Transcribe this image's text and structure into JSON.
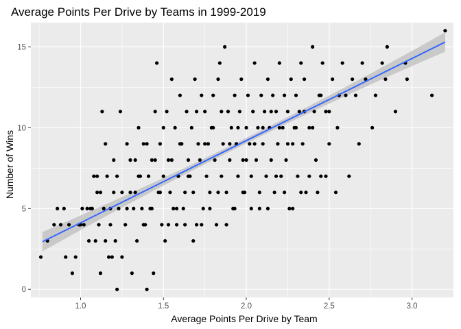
{
  "chart_data": {
    "type": "scatter",
    "title": "Average Points Per Drive by Teams in 1999-2019",
    "xlabel": "Average Points Per Drive by Team",
    "ylabel": "Number of Wins",
    "xlim": [
      0.7,
      3.25
    ],
    "ylim": [
      -0.5,
      16.5
    ],
    "x_ticks": [
      "1.0",
      "1.5",
      "2.0",
      "2.5",
      "3.0"
    ],
    "y_ticks": [
      "0",
      "5",
      "10",
      "15"
    ],
    "grid": true,
    "legend": "none",
    "colors": {
      "panel_background": "#ebebeb",
      "grid_major": "#ffffff",
      "points": "#000000",
      "trend_line": "#3366ff",
      "confidence_band": "#bdbdbd"
    },
    "trend_line": {
      "method": "lm",
      "x_range": [
        0.77,
        3.2
      ],
      "y_at_start": 2.95,
      "y_at_end": 15.3,
      "band_half_width_ends": 0.6,
      "band_half_width_center": 0.17
    },
    "series": [
      {
        "points": [
          [
            0.76,
            2
          ],
          [
            0.8,
            3
          ],
          [
            0.84,
            4
          ],
          [
            0.86,
            5
          ],
          [
            0.88,
            4
          ],
          [
            0.9,
            5
          ],
          [
            0.91,
            2
          ],
          [
            0.93,
            4
          ],
          [
            0.95,
            1
          ],
          [
            0.97,
            2
          ],
          [
            0.99,
            4
          ],
          [
            1.01,
            5
          ],
          [
            1.02,
            4
          ],
          [
            1.04,
            5
          ],
          [
            1.06,
            5
          ],
          [
            1.07,
            5
          ],
          [
            1.08,
            7
          ],
          [
            1.09,
            3
          ],
          [
            1.1,
            6
          ],
          [
            1.11,
            4
          ],
          [
            1.12,
            1
          ],
          [
            1.13,
            11
          ],
          [
            1.14,
            5
          ],
          [
            1.15,
            3
          ],
          [
            1.16,
            7
          ],
          [
            1.17,
            2
          ],
          [
            1.18,
            4
          ],
          [
            1.19,
            2
          ],
          [
            1.2,
            6
          ],
          [
            1.21,
            3
          ],
          [
            1.22,
            0
          ],
          [
            1.23,
            5
          ],
          [
            1.24,
            11
          ],
          [
            1.25,
            2
          ],
          [
            1.27,
            4
          ],
          [
            1.28,
            9
          ],
          [
            1.3,
            6
          ],
          [
            1.31,
            1
          ],
          [
            1.32,
            5
          ],
          [
            1.33,
            8
          ],
          [
            1.34,
            3
          ],
          [
            1.35,
            10
          ],
          [
            1.36,
            7
          ],
          [
            1.37,
            5
          ],
          [
            1.38,
            9
          ],
          [
            1.39,
            4
          ],
          [
            1.4,
            0
          ],
          [
            1.41,
            7
          ],
          [
            1.42,
            5
          ],
          [
            1.43,
            8
          ],
          [
            1.44,
            1
          ],
          [
            1.45,
            11
          ],
          [
            1.46,
            14
          ],
          [
            1.47,
            6
          ],
          [
            1.48,
            9
          ],
          [
            1.49,
            4
          ],
          [
            1.5,
            7
          ],
          [
            1.51,
            3
          ],
          [
            1.52,
            11
          ],
          [
            1.53,
            8
          ],
          [
            1.54,
            6
          ],
          [
            1.55,
            13
          ],
          [
            1.56,
            5
          ],
          [
            1.57,
            10
          ],
          [
            1.58,
            4
          ],
          [
            1.59,
            7
          ],
          [
            1.6,
            12
          ],
          [
            1.61,
            9
          ],
          [
            1.62,
            5
          ],
          [
            1.63,
            6
          ],
          [
            1.64,
            11
          ],
          [
            1.65,
            8
          ],
          [
            1.66,
            7
          ],
          [
            1.67,
            10
          ],
          [
            1.68,
            6
          ],
          [
            1.69,
            13
          ],
          [
            1.7,
            4
          ],
          [
            1.71,
            9
          ],
          [
            1.72,
            8
          ],
          [
            1.73,
            12
          ],
          [
            1.74,
            5
          ],
          [
            1.75,
            11
          ],
          [
            1.76,
            7
          ],
          [
            1.77,
            9
          ],
          [
            1.78,
            6
          ],
          [
            1.79,
            10
          ],
          [
            1.8,
            12
          ],
          [
            1.81,
            8
          ],
          [
            1.82,
            4
          ],
          [
            1.83,
            13
          ],
          [
            1.84,
            14
          ],
          [
            1.85,
            7
          ],
          [
            1.86,
            9
          ],
          [
            1.87,
            15
          ],
          [
            1.88,
            6
          ],
          [
            1.89,
            11
          ],
          [
            1.9,
            8
          ],
          [
            1.91,
            10
          ],
          [
            1.92,
            5
          ],
          [
            1.93,
            12
          ],
          [
            1.94,
            9
          ],
          [
            1.95,
            7
          ],
          [
            1.96,
            11
          ],
          [
            1.97,
            13
          ],
          [
            1.98,
            8
          ],
          [
            1.99,
            6
          ],
          [
            2.0,
            10
          ],
          [
            2.01,
            12
          ],
          [
            2.02,
            9
          ],
          [
            2.03,
            7
          ],
          [
            2.04,
            11
          ],
          [
            2.05,
            14
          ],
          [
            2.06,
            8
          ],
          [
            2.07,
            10
          ],
          [
            2.08,
            5
          ],
          [
            2.09,
            12
          ],
          [
            2.1,
            9
          ],
          [
            2.11,
            11
          ],
          [
            2.12,
            7
          ],
          [
            2.13,
            13
          ],
          [
            2.14,
            10
          ],
          [
            2.15,
            8
          ],
          [
            2.16,
            12
          ],
          [
            2.17,
            6
          ],
          [
            2.18,
            11
          ],
          [
            2.19,
            9
          ],
          [
            2.2,
            14
          ],
          [
            2.21,
            7
          ],
          [
            2.22,
            10
          ],
          [
            2.23,
            12
          ],
          [
            2.24,
            8
          ],
          [
            2.25,
            11
          ],
          [
            2.26,
            5
          ],
          [
            2.27,
            13
          ],
          [
            2.28,
            9
          ],
          [
            2.29,
            10
          ],
          [
            2.3,
            12
          ],
          [
            2.31,
            7
          ],
          [
            2.32,
            11
          ],
          [
            2.33,
            14
          ],
          [
            2.34,
            9
          ],
          [
            2.35,
            13
          ],
          [
            2.36,
            6
          ],
          [
            2.38,
            10
          ],
          [
            2.4,
            15
          ],
          [
            2.41,
            11
          ],
          [
            2.42,
            8
          ],
          [
            2.44,
            12
          ],
          [
            2.45,
            7
          ],
          [
            2.46,
            14
          ],
          [
            2.48,
            11
          ],
          [
            2.5,
            9
          ],
          [
            2.52,
            13
          ],
          [
            2.54,
            6
          ],
          [
            2.56,
            12
          ],
          [
            2.58,
            14
          ],
          [
            2.6,
            12
          ],
          [
            2.62,
            7
          ],
          [
            2.64,
            13
          ],
          [
            2.66,
            12
          ],
          [
            2.68,
            9
          ],
          [
            2.7,
            14
          ],
          [
            2.72,
            13
          ],
          [
            2.76,
            10
          ],
          [
            2.78,
            12
          ],
          [
            2.82,
            14
          ],
          [
            2.84,
            13
          ],
          [
            2.85,
            15
          ],
          [
            2.9,
            11
          ],
          [
            2.96,
            14
          ],
          [
            2.97,
            13
          ],
          [
            3.12,
            12
          ],
          [
            3.2,
            16
          ],
          [
            1.1,
            7
          ],
          [
            1.15,
            9
          ],
          [
            1.2,
            8
          ],
          [
            1.25,
            6
          ],
          [
            1.3,
            8
          ],
          [
            1.35,
            7
          ],
          [
            1.4,
            9
          ],
          [
            1.45,
            8
          ],
          [
            1.5,
            10
          ],
          [
            1.55,
            8
          ],
          [
            1.6,
            9
          ],
          [
            1.65,
            7
          ],
          [
            1.7,
            11
          ],
          [
            1.75,
            9
          ],
          [
            1.8,
            10
          ],
          [
            1.85,
            11
          ],
          [
            1.9,
            9
          ],
          [
            1.95,
            10
          ],
          [
            2.0,
            8
          ],
          [
            2.05,
            9
          ],
          [
            2.1,
            10
          ],
          [
            2.15,
            11
          ],
          [
            2.2,
            10
          ],
          [
            2.25,
            9
          ],
          [
            2.3,
            10
          ],
          [
            2.35,
            11
          ],
          [
            2.4,
            10
          ],
          [
            2.45,
            12
          ],
          [
            2.5,
            11
          ],
          [
            2.55,
            10
          ],
          [
            1.0,
            4
          ],
          [
            1.05,
            3
          ],
          [
            1.12,
            6
          ],
          [
            1.18,
            5
          ],
          [
            1.22,
            7
          ],
          [
            1.28,
            5
          ],
          [
            1.33,
            6
          ],
          [
            1.38,
            4
          ],
          [
            1.43,
            5
          ],
          [
            1.48,
            6
          ],
          [
            1.53,
            4
          ],
          [
            1.58,
            5
          ],
          [
            1.63,
            4
          ],
          [
            1.68,
            3
          ],
          [
            1.73,
            4
          ],
          [
            1.78,
            5
          ],
          [
            1.83,
            6
          ],
          [
            1.88,
            4
          ],
          [
            1.93,
            5
          ],
          [
            1.98,
            6
          ],
          [
            2.03,
            5
          ],
          [
            2.08,
            6
          ],
          [
            2.13,
            5
          ],
          [
            2.18,
            7
          ],
          [
            2.23,
            6
          ],
          [
            2.28,
            5
          ],
          [
            2.33,
            6
          ],
          [
            2.38,
            7
          ],
          [
            2.43,
            6
          ],
          [
            2.48,
            7
          ]
        ]
      }
    ]
  }
}
